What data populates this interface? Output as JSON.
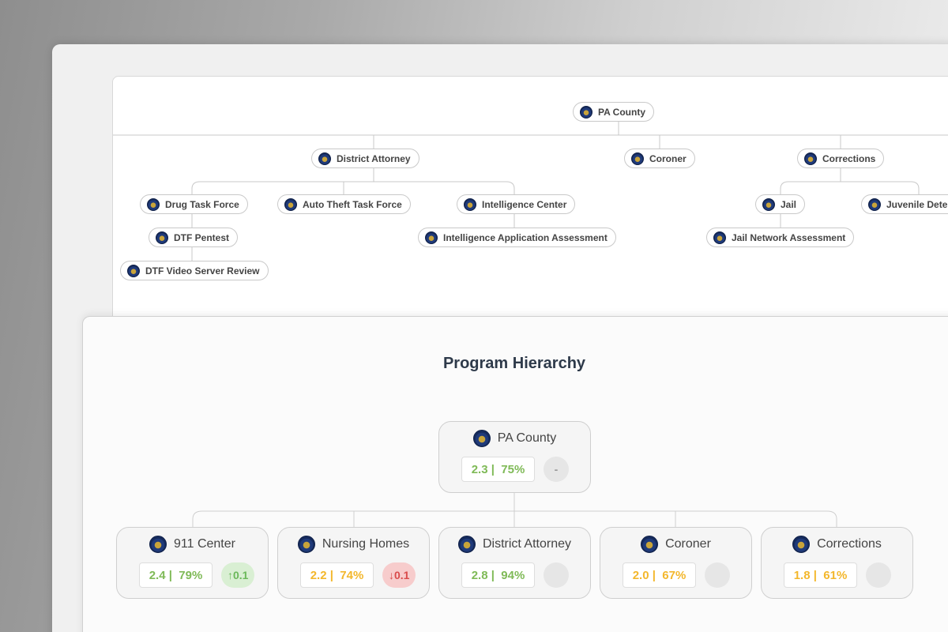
{
  "org_chart": {
    "nodes": {
      "root": "PA County",
      "district_attorney": "District Attorney",
      "coroner": "Coroner",
      "corrections": "Corrections",
      "drug_task_force": "Drug Task Force",
      "auto_theft": "Auto Theft Task Force",
      "intel_center": "Intelligence Center",
      "jail": "Jail",
      "juvenile": "Juvenile Deter",
      "dtf_pentest": "DTF Pentest",
      "intel_app": "Intelligence Application Assessment",
      "jail_network": "Jail Network Assessment",
      "dtf_video": "DTF Video Server Review"
    }
  },
  "program_hierarchy": {
    "title": "Program Hierarchy",
    "root": {
      "name": "PA County",
      "score": "2.3",
      "percent": "75%",
      "score_color": "green",
      "delta": "-",
      "delta_type": "neutral"
    },
    "children": [
      {
        "name": "911 Center",
        "score": "2.4",
        "percent": "79%",
        "score_color": "green",
        "delta": "0.1",
        "delta_type": "up"
      },
      {
        "name": "Nursing Homes",
        "score": "2.2",
        "percent": "74%",
        "score_color": "yellow",
        "delta": "0.1",
        "delta_type": "down"
      },
      {
        "name": "District Attorney",
        "score": "2.8",
        "percent": "94%",
        "score_color": "green",
        "delta": "",
        "delta_type": "neutral"
      },
      {
        "name": "Coroner",
        "score": "2.0",
        "percent": "67%",
        "score_color": "yellow",
        "delta": "",
        "delta_type": "neutral"
      },
      {
        "name": "Corrections",
        "score": "1.8",
        "percent": "61%",
        "score_color": "yellow",
        "delta": "",
        "delta_type": "neutral"
      }
    ],
    "colors": {
      "green": "#7fba57",
      "yellow": "#f3b72c",
      "up": "#6bb85a",
      "down": "#d94b4b"
    },
    "icons": {
      "seal": "county-seal-icon",
      "up": "arrow-up-icon",
      "down": "arrow-down-icon"
    }
  }
}
